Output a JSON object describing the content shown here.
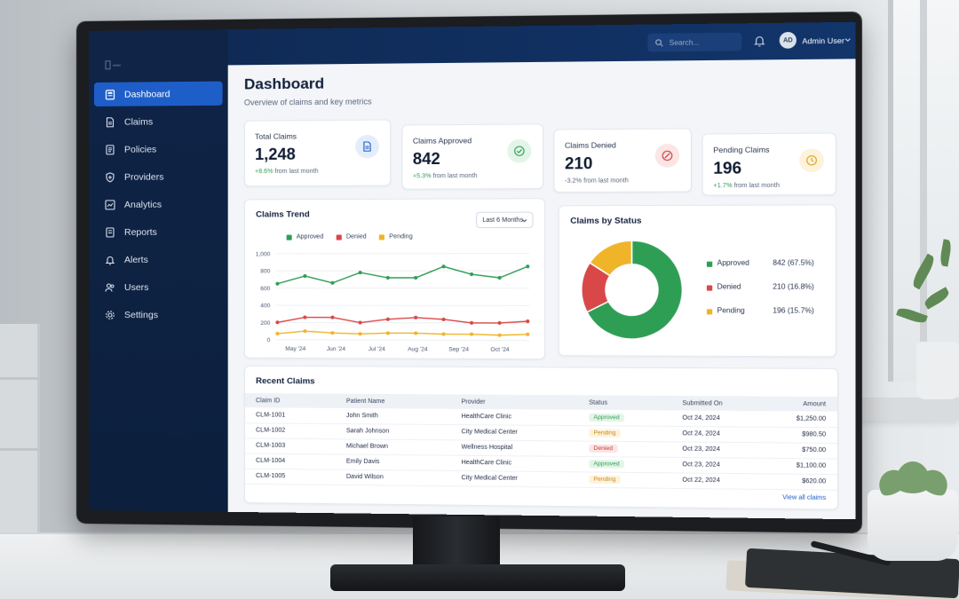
{
  "sidebar": {
    "items": [
      {
        "label": "Dashboard",
        "icon": "dashboard-icon",
        "active": true
      },
      {
        "label": "Claims",
        "icon": "document-icon"
      },
      {
        "label": "Policies",
        "icon": "policy-icon"
      },
      {
        "label": "Providers",
        "icon": "shield-icon"
      },
      {
        "label": "Analytics",
        "icon": "analytics-icon"
      },
      {
        "label": "Reports",
        "icon": "report-icon"
      },
      {
        "label": "Alerts",
        "icon": "bell-icon"
      },
      {
        "label": "Users",
        "icon": "users-icon"
      },
      {
        "label": "Settings",
        "icon": "gear-icon"
      }
    ]
  },
  "topbar": {
    "search_placeholder": "Search...",
    "avatar_initials": "AD",
    "user_name": "Admin User"
  },
  "header": {
    "title": "Dashboard",
    "subtitle": "Overview of claims and key metrics"
  },
  "kpis": [
    {
      "label": "Total Claims",
      "value": "1,248",
      "change": "+8.6%",
      "change_suffix": "from last month",
      "direction": "up",
      "icon": "document-icon",
      "icon_color": "#1e5ec9",
      "icon_bg": "#e4edfb"
    },
    {
      "label": "Claims Approved",
      "value": "842",
      "change": "+5.3%",
      "change_suffix": "from last month",
      "direction": "up",
      "icon": "check-circle-icon",
      "icon_color": "#2f9e55",
      "icon_bg": "#e3f5e8"
    },
    {
      "label": "Claims Denied",
      "value": "210",
      "change": "-3.2%",
      "change_suffix": "from last month",
      "direction": "down",
      "icon": "denied-circle-icon",
      "icon_color": "#cc3b3b",
      "icon_bg": "#fbe5e5"
    },
    {
      "label": "Pending Claims",
      "value": "196",
      "change": "+1.7%",
      "change_suffix": "from last month",
      "direction": "up",
      "icon": "clock-icon",
      "icon_color": "#e0a21a",
      "icon_bg": "#fdf3dd"
    }
  ],
  "trend": {
    "title": "Claims Trend",
    "range_label": "Last 6 Months"
  },
  "status_panel": {
    "title": "Claims by Status",
    "rows": [
      {
        "name": "Approved",
        "value": "842 (67.5%)"
      },
      {
        "name": "Denied",
        "value": "210 (16.8%)"
      },
      {
        "name": "Pending",
        "value": "196 (15.7%)"
      }
    ]
  },
  "chart_data": [
    {
      "type": "line",
      "title": "Claims Trend",
      "x_tick_labels": [
        "May '24",
        "Jun '24",
        "Jul '24",
        "Aug '24",
        "Sep '24",
        "Oct '24"
      ],
      "y_tick_labels": [
        "1,000",
        "800",
        "600",
        "400",
        "200",
        "0"
      ],
      "ylim": [
        0,
        1000
      ],
      "grid": true,
      "legend_position": "top",
      "series": [
        {
          "name": "Approved",
          "color": "#2f9e55",
          "values": [
            650,
            740,
            660,
            780,
            720,
            720,
            850,
            760,
            720,
            850
          ]
        },
        {
          "name": "Denied",
          "color": "#d94848",
          "values": [
            200,
            260,
            260,
            200,
            240,
            260,
            240,
            200,
            200,
            220
          ]
        },
        {
          "name": "Pending",
          "color": "#f0b429",
          "values": [
            70,
            100,
            80,
            70,
            80,
            80,
            70,
            70,
            60,
            70
          ]
        }
      ]
    },
    {
      "type": "pie",
      "title": "Claims by Status",
      "donut": true,
      "categories": [
        "Approved",
        "Denied",
        "Pending"
      ],
      "values": [
        842,
        210,
        196
      ],
      "colors": [
        "#2f9e55",
        "#d94848",
        "#f0b429"
      ]
    }
  ],
  "recent_claims": {
    "title": "Recent Claims",
    "columns": [
      "Claim ID",
      "Patient Name",
      "Provider",
      "Status",
      "Submitted On",
      "Amount"
    ],
    "rows": [
      {
        "id": "CLM-1001",
        "patient": "John Smith",
        "provider": "HealthCare Clinic",
        "status": "Approved",
        "status_key": "approved",
        "submitted": "Oct 24, 2024",
        "amount": "$1,250.00"
      },
      {
        "id": "CLM-1002",
        "patient": "Sarah Johnson",
        "provider": "City Medical Center",
        "status": "Pending",
        "status_key": "pending",
        "submitted": "Oct 24, 2024",
        "amount": "$980.50"
      },
      {
        "id": "CLM-1003",
        "patient": "Michael Brown",
        "provider": "Wellness Hospital",
        "status": "Denied",
        "status_key": "denied",
        "submitted": "Oct 23, 2024",
        "amount": "$750.00"
      },
      {
        "id": "CLM-1004",
        "patient": "Emily Davis",
        "provider": "HealthCare Clinic",
        "status": "Approved",
        "status_key": "approved",
        "submitted": "Oct 23, 2024",
        "amount": "$1,100.00"
      },
      {
        "id": "CLM-1005",
        "patient": "David Wilson",
        "provider": "City Medical Center",
        "status": "Pending",
        "status_key": "pending",
        "submitted": "Oct 22, 2024",
        "amount": "$620.00"
      }
    ],
    "view_all": "View all claims"
  }
}
